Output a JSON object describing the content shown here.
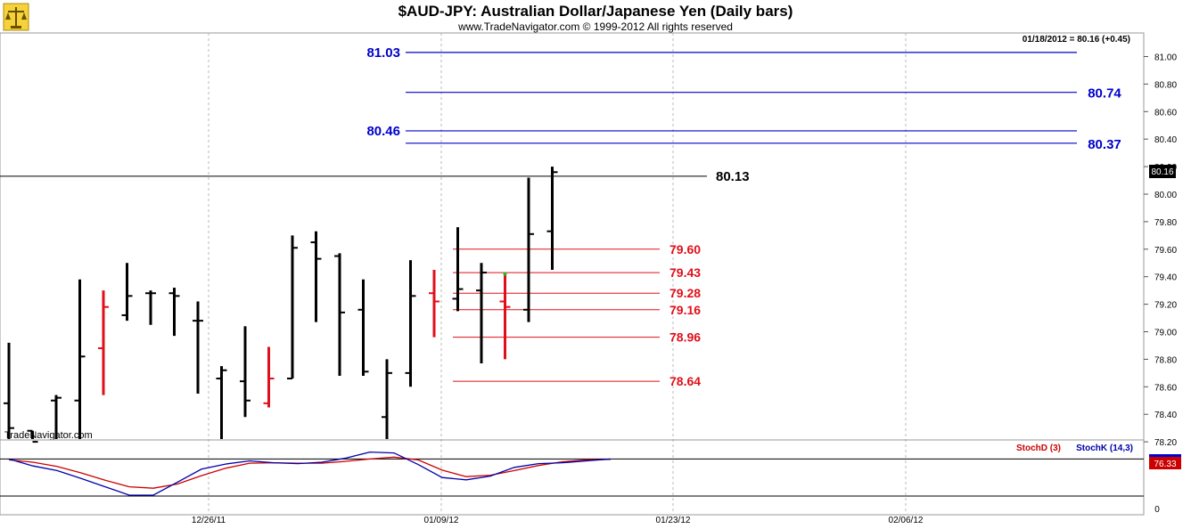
{
  "header": {
    "title": "$AUD-JPY:  Australian Dollar/Japanese Yen  (Daily bars)",
    "subtitle": "www.TradeNavigator.com © 1999-2012 All rights reserved",
    "quote": "01/18/2012 = 80.16 (+0.45)",
    "watermark": "TradeNavigator.com",
    "logo_icon": "scales-icon"
  },
  "colors": {
    "bar_normal": "#000000",
    "bar_highlight": "#e0101a",
    "blue_level": "#0000cc",
    "red_level": "#e0101a",
    "stoch_d": "#cc0000",
    "stoch_k": "#0000aa",
    "grid": "#b8b8b8"
  },
  "chart_data": {
    "type": "ohlc",
    "x_tick_labels": [
      "12/26/11",
      "01/09/12",
      "01/23/12",
      "02/06/12"
    ],
    "ylim": [
      78.1,
      81.3
    ],
    "y_ticks": [
      "78.20",
      "78.40",
      "78.60",
      "78.80",
      "79.00",
      "79.20",
      "79.40",
      "79.60",
      "79.80",
      "80.00",
      "80.20",
      "80.40",
      "80.60",
      "80.80",
      "81.00"
    ],
    "last_price": "80.16",
    "bars": [
      {
        "o": 78.48,
        "h": 78.92,
        "l": 78.1,
        "c": 78.3,
        "color": "black"
      },
      {
        "o": 78.28,
        "h": 78.28,
        "l": 78.1,
        "c": 78.2,
        "color": "black"
      },
      {
        "o": 78.5,
        "h": 78.54,
        "l": 78.18,
        "c": 78.52,
        "color": "black"
      },
      {
        "o": 78.5,
        "h": 79.38,
        "l": 78.22,
        "c": 78.82,
        "color": "black"
      },
      {
        "o": 78.88,
        "h": 79.3,
        "l": 78.54,
        "c": 79.18,
        "color": "red"
      },
      {
        "o": 79.12,
        "h": 79.5,
        "l": 79.08,
        "c": 79.26,
        "color": "black"
      },
      {
        "o": 79.28,
        "h": 79.3,
        "l": 79.05,
        "c": 79.28,
        "color": "black"
      },
      {
        "o": 79.28,
        "h": 79.32,
        "l": 78.97,
        "c": 79.26,
        "color": "black"
      },
      {
        "o": 79.08,
        "h": 79.22,
        "l": 78.55,
        "c": 79.08,
        "color": "black"
      },
      {
        "o": 78.66,
        "h": 78.75,
        "l": 78.17,
        "c": 78.72,
        "color": "black"
      },
      {
        "o": 78.64,
        "h": 79.04,
        "l": 78.38,
        "c": 78.5,
        "color": "black"
      },
      {
        "o": 78.48,
        "h": 78.89,
        "l": 78.45,
        "c": 78.66,
        "color": "red"
      },
      {
        "o": 78.66,
        "h": 79.7,
        "l": 78.66,
        "c": 79.61,
        "color": "black"
      },
      {
        "o": 79.65,
        "h": 79.73,
        "l": 79.07,
        "c": 79.53,
        "color": "black"
      },
      {
        "o": 79.55,
        "h": 79.57,
        "l": 78.68,
        "c": 79.14,
        "color": "black"
      },
      {
        "o": 79.16,
        "h": 79.38,
        "l": 78.68,
        "c": 78.71,
        "color": "black"
      },
      {
        "o": 78.38,
        "h": 78.8,
        "l": 78.17,
        "c": 78.7,
        "color": "black"
      },
      {
        "o": 78.7,
        "h": 79.52,
        "l": 78.6,
        "c": 79.26,
        "color": "black"
      },
      {
        "o": 79.28,
        "h": 79.45,
        "l": 78.96,
        "c": 79.22,
        "color": "red"
      },
      {
        "o": 79.24,
        "h": 79.76,
        "l": 79.15,
        "c": 79.31,
        "color": "black"
      },
      {
        "o": 79.3,
        "h": 79.5,
        "l": 78.77,
        "c": 79.43,
        "color": "black"
      },
      {
        "o": 79.22,
        "h": 79.42,
        "l": 78.8,
        "c": 79.18,
        "color": "red"
      },
      {
        "o": 79.16,
        "h": 80.12,
        "l": 79.07,
        "c": 79.71,
        "color": "black"
      },
      {
        "o": 79.73,
        "h": 80.2,
        "l": 79.45,
        "c": 80.16,
        "color": "black"
      }
    ],
    "blue_levels": [
      {
        "value": 81.03,
        "label": "81.03",
        "side": "left"
      },
      {
        "value": 80.74,
        "label": "80.74",
        "side": "right"
      },
      {
        "value": 80.46,
        "label": "80.46",
        "side": "left"
      },
      {
        "value": 80.37,
        "label": "80.37",
        "side": "right"
      }
    ],
    "black_level": {
      "value": 80.13,
      "label": "80.13"
    },
    "red_levels": [
      {
        "value": 79.6,
        "label": "79.60"
      },
      {
        "value": 79.43,
        "label": "79.43"
      },
      {
        "value": 79.28,
        "label": "79.28"
      },
      {
        "value": 79.16,
        "label": "79.16"
      },
      {
        "value": 78.96,
        "label": "78.96"
      },
      {
        "value": 78.64,
        "label": "78.64"
      }
    ],
    "stochastic": {
      "d_label": "StochD (3)",
      "k_label": "StochK (14,3)",
      "last_value": "76.33",
      "lower_value": "0",
      "d_values": [
        78,
        73,
        64,
        50,
        34,
        20,
        17,
        26,
        44,
        60,
        71,
        72,
        71,
        71,
        75,
        80,
        84,
        78,
        56,
        42,
        45,
        55,
        66,
        74,
        78,
        79
      ],
      "k_values": [
        80,
        65,
        55,
        38,
        20,
        2,
        2,
        30,
        58,
        69,
        76,
        72,
        70,
        73,
        82,
        95,
        93,
        68,
        40,
        35,
        43,
        62,
        70,
        72,
        76,
        80
      ]
    }
  }
}
